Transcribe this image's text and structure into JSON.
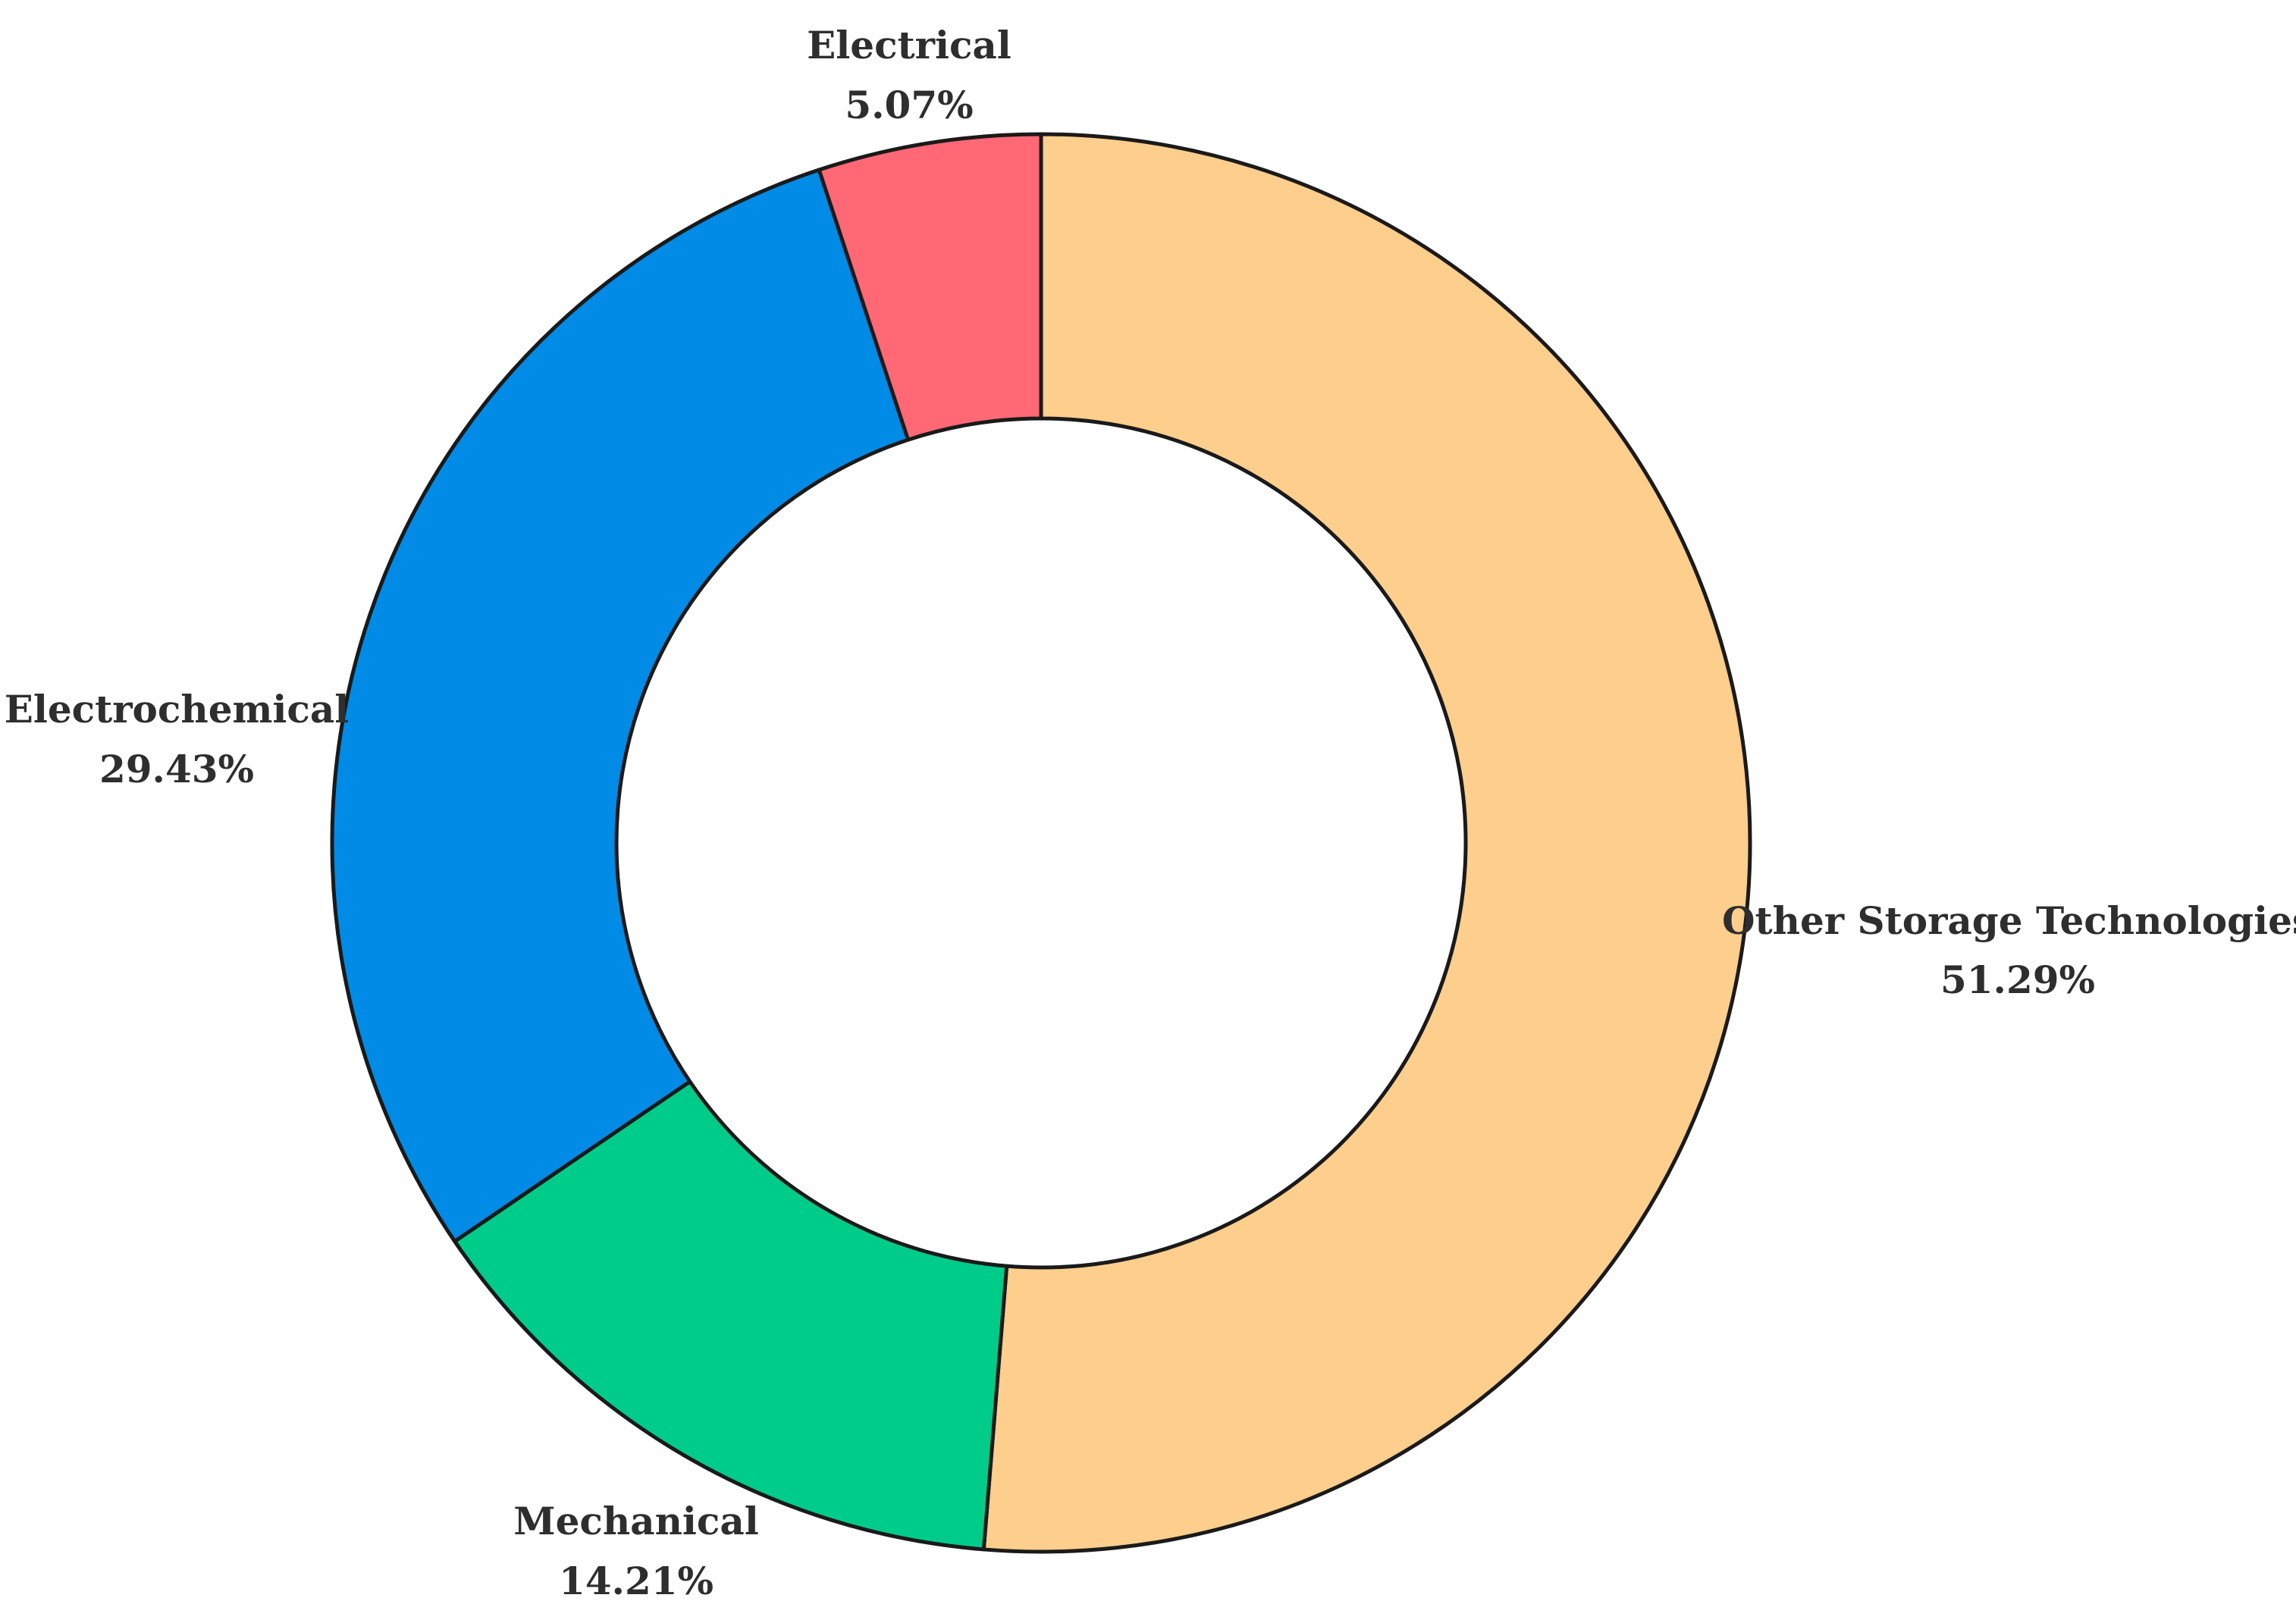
{
  "chart_data": {
    "type": "pie",
    "variant": "donut",
    "slices": [
      {
        "label": "Other Storage Technologies",
        "value": 51.29,
        "value_label": "51.29%",
        "color": "#FDCE8C"
      },
      {
        "label": "Mechanical",
        "value": 14.21,
        "value_label": "14.21%",
        "color": "#00CC8A"
      },
      {
        "label": "Electrochemical",
        "value": 29.43,
        "value_label": "29.43%",
        "color": "#008BE6"
      },
      {
        "label": "Electrical",
        "value": 5.07,
        "value_label": "5.07%",
        "color": "#FF6874"
      }
    ],
    "start_angle": "12 o'clock",
    "direction": "clockwise",
    "edge_color": "#1a1a1a",
    "legend": "none"
  }
}
